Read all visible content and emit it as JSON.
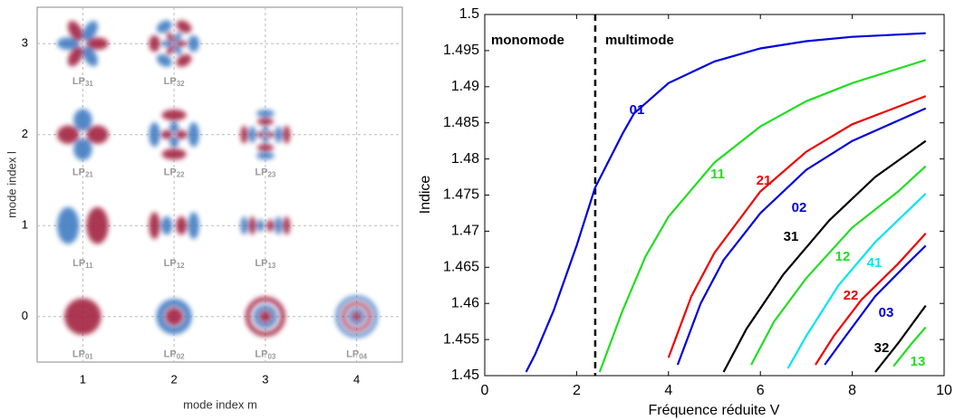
{
  "chart_data": [
    {
      "type": "mode-map",
      "xlabel": "mode index m",
      "ylabel": "mode index l",
      "xlim": [
        0.5,
        4.5
      ],
      "ylim": [
        -0.5,
        3.4
      ],
      "xticks": [
        1,
        2,
        3,
        4
      ],
      "yticks": [
        0,
        1,
        2,
        3
      ],
      "grid": true,
      "colors": [
        "#a3213f",
        "#3f7bc2"
      ],
      "modes": [
        {
          "label": "LP",
          "sub": "31",
          "m": 1,
          "l": 3
        },
        {
          "label": "LP",
          "sub": "32",
          "m": 2,
          "l": 3
        },
        {
          "label": "LP",
          "sub": "21",
          "m": 1,
          "l": 2
        },
        {
          "label": "LP",
          "sub": "22",
          "m": 2,
          "l": 2
        },
        {
          "label": "LP",
          "sub": "23",
          "m": 3,
          "l": 2
        },
        {
          "label": "LP",
          "sub": "11",
          "m": 1,
          "l": 1
        },
        {
          "label": "LP",
          "sub": "12",
          "m": 2,
          "l": 1
        },
        {
          "label": "LP",
          "sub": "13",
          "m": 3,
          "l": 1
        },
        {
          "label": "LP",
          "sub": "01",
          "m": 1,
          "l": 0
        },
        {
          "label": "LP",
          "sub": "02",
          "m": 2,
          "l": 0
        },
        {
          "label": "LP",
          "sub": "03",
          "m": 3,
          "l": 0
        },
        {
          "label": "LP",
          "sub": "04",
          "m": 4,
          "l": 0
        }
      ]
    },
    {
      "type": "line",
      "xlabel": "Fréquence réduite V",
      "ylabel": "Indice",
      "xlim": [
        0,
        10
      ],
      "ylim": [
        1.45,
        1.5
      ],
      "xticks": [
        0,
        2,
        4,
        6,
        8,
        10
      ],
      "yticks": [
        1.45,
        1.455,
        1.46,
        1.465,
        1.47,
        1.475,
        1.48,
        1.485,
        1.49,
        1.495,
        1.5
      ],
      "vline": 2.405,
      "annotations": [
        "monomode",
        "multimode"
      ],
      "series": [
        {
          "name": "01",
          "color": "#0000dd",
          "x": [
            0.9,
            1.1,
            1.5,
            2,
            2.4,
            3,
            3.25,
            4,
            5,
            6,
            7,
            8,
            9.6
          ],
          "values": [
            1.4505,
            1.453,
            1.459,
            1.468,
            1.476,
            1.4835,
            1.4863,
            1.4905,
            1.4935,
            1.4953,
            1.4963,
            1.4969,
            1.4974
          ]
        },
        {
          "name": "11",
          "color": "#22dd22",
          "x": [
            2.5,
            3,
            3.5,
            4,
            5,
            6,
            7,
            8,
            9.6
          ],
          "values": [
            1.4505,
            1.459,
            1.4665,
            1.472,
            1.4795,
            1.4845,
            1.488,
            1.4905,
            1.4937
          ]
        },
        {
          "name": "21",
          "color": "#ee0000",
          "x": [
            4,
            4.5,
            5,
            6,
            7,
            8,
            9.6
          ],
          "values": [
            1.4525,
            1.461,
            1.467,
            1.4755,
            1.481,
            1.4848,
            1.4887
          ]
        },
        {
          "name": "02",
          "color": "#0000dd",
          "x": [
            4.2,
            4.7,
            5.2,
            6,
            7,
            8,
            9.6
          ],
          "values": [
            1.4515,
            1.46,
            1.466,
            1.4725,
            1.4785,
            1.4825,
            1.487
          ]
        },
        {
          "name": "31",
          "color": "#000000",
          "x": [
            5.2,
            5.7,
            6.5,
            7.5,
            8.5,
            9.6
          ],
          "values": [
            1.4505,
            1.4565,
            1.464,
            1.4715,
            1.4775,
            1.4825
          ]
        },
        {
          "name": "12",
          "color": "#22dd22",
          "x": [
            5.8,
            6.3,
            7,
            8,
            9,
            9.6
          ],
          "values": [
            1.4515,
            1.4575,
            1.4635,
            1.4705,
            1.4755,
            1.479
          ]
        },
        {
          "name": "41",
          "color": "#00e5ee",
          "x": [
            6.6,
            7,
            7.7,
            8.5,
            9.6
          ],
          "values": [
            1.451,
            1.4555,
            1.4625,
            1.4685,
            1.4752
          ]
        },
        {
          "name": "22",
          "color": "#ee0000",
          "x": [
            7.2,
            7.6,
            8.2,
            9,
            9.6
          ],
          "values": [
            1.4515,
            1.4555,
            1.4605,
            1.4655,
            1.4697
          ]
        },
        {
          "name": "03",
          "color": "#0000dd",
          "x": [
            7.4,
            7.8,
            8.5,
            9.2,
            9.6
          ],
          "values": [
            1.4515,
            1.455,
            1.461,
            1.4655,
            1.468
          ]
        },
        {
          "name": "32",
          "color": "#000000",
          "x": [
            8.5,
            9,
            9.6
          ],
          "values": [
            1.4505,
            1.4545,
            1.4597
          ]
        },
        {
          "name": "13",
          "color": "#22dd22",
          "x": [
            8.9,
            9.3,
            9.6
          ],
          "values": [
            1.4513,
            1.4545,
            1.4567
          ]
        }
      ]
    }
  ]
}
